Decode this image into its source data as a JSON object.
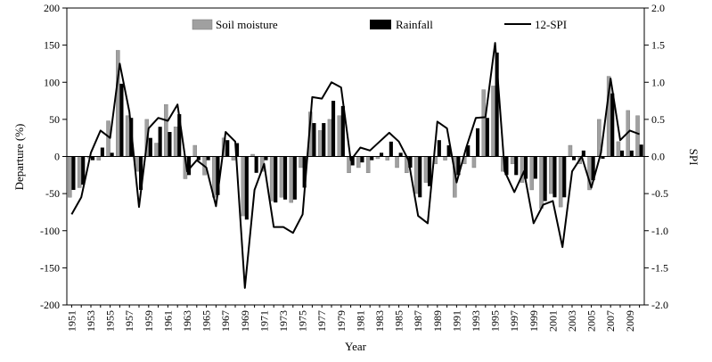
{
  "chart_data": {
    "type": "bar",
    "title": "",
    "xlabel": "Year",
    "ylabel": "Departure (%)",
    "y2label": "SPI",
    "ylim": [
      -200,
      200
    ],
    "y2lim": [
      -2.0,
      2.0
    ],
    "yticks": [
      -200,
      -150,
      -100,
      -50,
      0,
      50,
      100,
      150,
      200
    ],
    "y2ticks": [
      "-2.0",
      "-1.5",
      "-1.0",
      "-0.5",
      "0.0",
      "0.5",
      "1.0",
      "1.5",
      "2.0"
    ],
    "grid": false,
    "legend_position": "top",
    "years": [
      1951,
      1952,
      1953,
      1954,
      1955,
      1956,
      1957,
      1958,
      1959,
      1960,
      1961,
      1962,
      1963,
      1964,
      1965,
      1966,
      1967,
      1968,
      1969,
      1970,
      1971,
      1972,
      1973,
      1974,
      1975,
      1976,
      1977,
      1978,
      1979,
      1980,
      1981,
      1982,
      1983,
      1984,
      1985,
      1986,
      1987,
      1988,
      1989,
      1990,
      1991,
      1992,
      1993,
      1994,
      1995,
      1996,
      1997,
      1998,
      1999,
      2000,
      2001,
      2002,
      2003,
      2004,
      2005,
      2006,
      2007,
      2008,
      2009,
      2010
    ],
    "xtick_labels": [
      "1951",
      "1953",
      "1955",
      "1957",
      "1959",
      "1961",
      "1963",
      "1965",
      "1967",
      "1969",
      "1971",
      "1973",
      "1975",
      "1977",
      "1979",
      "1981",
      "1983",
      "1985",
      "1987",
      "1989",
      "1991",
      "1993",
      "1995",
      "1997",
      "1999",
      "2001",
      "2003",
      "2005",
      "2007",
      "2009"
    ],
    "series": [
      {
        "name": "Soil moisture",
        "kind": "bar",
        "color": "#a0a0a0",
        "values": [
          -55,
          -42,
          -2,
          -5,
          48,
          143,
          55,
          -20,
          50,
          18,
          70,
          40,
          -30,
          15,
          -25,
          -55,
          25,
          -5,
          -80,
          3,
          -20,
          -60,
          -55,
          -62,
          -15,
          60,
          35,
          50,
          55,
          -22,
          -15,
          -22,
          -3,
          -5,
          -15,
          -22,
          -50,
          -35,
          -10,
          -5,
          -55,
          -10,
          -15,
          90,
          95,
          -20,
          -10,
          -35,
          -45,
          -70,
          -50,
          -68,
          15,
          -10,
          -45,
          50,
          108,
          20,
          62,
          55
        ]
      },
      {
        "name": "Rainfall",
        "kind": "bar",
        "color": "#000000",
        "values": [
          -45,
          -38,
          -5,
          12,
          5,
          98,
          52,
          -45,
          25,
          40,
          33,
          57,
          -25,
          -5,
          -5,
          -52,
          22,
          18,
          -85,
          -22,
          -5,
          -62,
          -58,
          -58,
          -42,
          45,
          45,
          75,
          68,
          -12,
          -8,
          -5,
          5,
          20,
          5,
          -15,
          -55,
          -40,
          22,
          15,
          -25,
          15,
          38,
          52,
          140,
          -25,
          -25,
          -30,
          -30,
          -60,
          -55,
          -55,
          -5,
          8,
          -32,
          -3,
          85,
          8,
          8,
          16
        ]
      },
      {
        "name": "12-SPI",
        "kind": "line",
        "axis": "y2",
        "color": "#000000",
        "values": [
          -0.78,
          -0.55,
          0.05,
          0.35,
          0.25,
          1.25,
          0.6,
          -0.68,
          0.38,
          0.52,
          0.48,
          0.7,
          -0.2,
          -0.05,
          -0.15,
          -0.67,
          0.33,
          0.2,
          -1.77,
          -0.45,
          -0.1,
          -0.95,
          -0.95,
          -1.03,
          -0.78,
          0.8,
          0.78,
          1.0,
          0.93,
          -0.05,
          0.12,
          0.08,
          0.2,
          0.32,
          0.2,
          -0.05,
          -0.8,
          -0.9,
          0.47,
          0.38,
          -0.35,
          0.12,
          0.52,
          0.53,
          1.53,
          -0.2,
          -0.48,
          -0.2,
          -0.9,
          -0.65,
          -0.6,
          -1.22,
          -0.2,
          0.0,
          -0.42,
          0.05,
          1.05,
          0.22,
          0.35,
          0.3
        ]
      }
    ]
  }
}
